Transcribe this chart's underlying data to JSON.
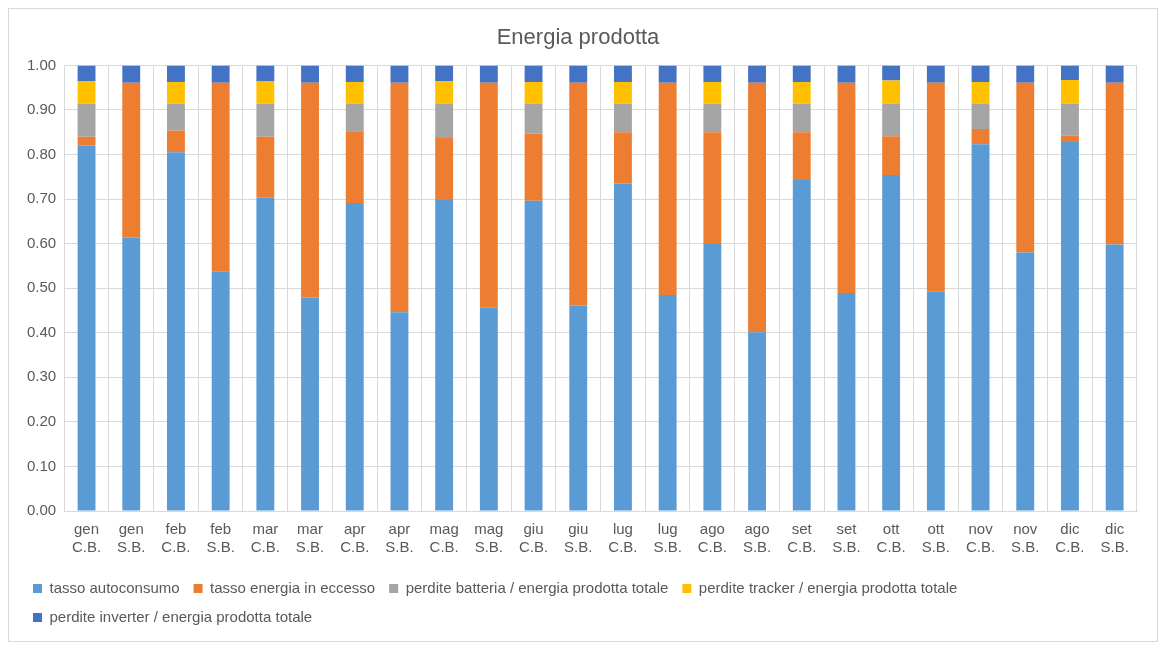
{
  "chart_data": {
    "type": "bar",
    "title": "Energia prodotta",
    "stacked": true,
    "grid": true,
    "legend": "bottom",
    "categories": [
      "gen\nC.B.",
      "gen\nS.B.",
      "feb\nC.B.",
      "feb\nS.B.",
      "mar\nC.B.",
      "mar\nS.B.",
      "apr\nC.B.",
      "apr\nS.B.",
      "mag\nC.B.",
      "mag\nS.B.",
      "giu\nC.B.",
      "giu\nS.B.",
      "lug\nC.B.",
      "lug\nS.B.",
      "ago\nC.B.",
      "ago\nS.B.",
      "set\nC.B.",
      "set\nS.B.",
      "ott\nC.B.",
      "ott\nS.B.",
      "nov\nC.B.",
      "nov\nS.B.",
      "dic\nC.B.",
      "dic\nS.B."
    ],
    "ylim": [
      0,
      1
    ],
    "yticks": [
      {
        "value": 0,
        "label": "0.00"
      },
      {
        "value": 0.1,
        "label": "0.10"
      },
      {
        "value": 0.2,
        "label": "0.20"
      },
      {
        "value": 0.3,
        "label": "0.30"
      },
      {
        "value": 0.4,
        "label": "0.40"
      },
      {
        "value": 0.5,
        "label": "0.50"
      },
      {
        "value": 0.6,
        "label": "0.60"
      },
      {
        "value": 0.7,
        "label": "0.70"
      },
      {
        "value": 0.8,
        "label": "0.80"
      },
      {
        "value": 0.9,
        "label": "0.90"
      },
      {
        "value": 1,
        "label": "1.00"
      }
    ],
    "series": [
      {
        "name": "tasso autoconsumo",
        "color": "#5b9bd5",
        "values": [
          0.82,
          0.614,
          0.805,
          0.538,
          0.703,
          0.479,
          0.691,
          0.446,
          0.698,
          0.456,
          0.696,
          0.461,
          0.735,
          0.485,
          0.599,
          0.401,
          0.743,
          0.489,
          0.754,
          0.493,
          0.823,
          0.58,
          0.828,
          0.598
        ]
      },
      {
        "name": "tasso energia in eccesso",
        "color": "#ed7d31",
        "values": [
          0.02,
          0.347,
          0.049,
          0.423,
          0.137,
          0.482,
          0.161,
          0.515,
          0.139,
          0.505,
          0.151,
          0.5,
          0.115,
          0.476,
          0.251,
          0.56,
          0.107,
          0.472,
          0.087,
          0.468,
          0.034,
          0.381,
          0.014,
          0.363
        ]
      },
      {
        "name": "perdite batteria / energia prodotta totale",
        "color": "#a5a5a5",
        "values": [
          0.074,
          0,
          0.06,
          0,
          0.074,
          0,
          0.062,
          0,
          0.077,
          0,
          0.067,
          0,
          0.064,
          0,
          0.064,
          0,
          0.064,
          0,
          0.073,
          0,
          0.057,
          0,
          0.072,
          0
        ]
      },
      {
        "name": "perdite tracker / energia prodotta totale",
        "color": "#ffc000",
        "values": [
          0.051,
          0,
          0.049,
          0,
          0.05,
          0,
          0.049,
          0,
          0.051,
          0,
          0.049,
          0,
          0.049,
          0,
          0.049,
          0,
          0.049,
          0,
          0.052,
          0,
          0.049,
          0,
          0.053,
          0
        ]
      },
      {
        "name": "perdite inverter / energia prodotta totale",
        "color": "#4472c4",
        "values": [
          0.035,
          0.039,
          0.037,
          0.039,
          0.036,
          0.039,
          0.037,
          0.039,
          0.035,
          0.039,
          0.037,
          0.039,
          0.037,
          0.039,
          0.037,
          0.039,
          0.037,
          0.039,
          0.034,
          0.039,
          0.037,
          0.039,
          0.033,
          0.039
        ]
      }
    ]
  }
}
